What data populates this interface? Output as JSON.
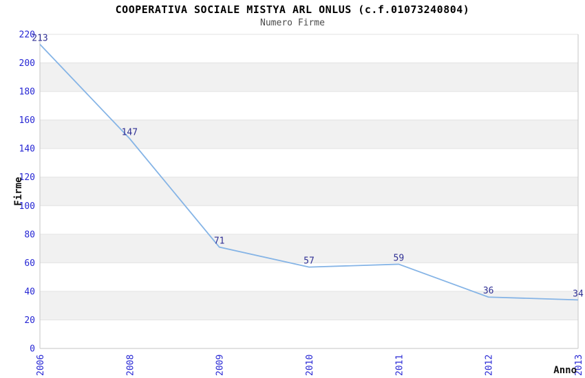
{
  "header": {
    "title": "COOPERATIVA SOCIALE MISTYA ARL ONLUS (c.f.01073240804)",
    "subtitle": "Numero Firme"
  },
  "chart_data": {
    "type": "line",
    "title": "COOPERATIVA SOCIALE MISTYA ARL ONLUS (c.f.01073240804)",
    "subtitle": "Numero Firme",
    "categories": [
      "2006",
      "2008",
      "2009",
      "2010",
      "2011",
      "2012",
      "2013"
    ],
    "values": [
      213,
      147,
      71,
      57,
      59,
      36,
      34
    ],
    "xlabel": "Anno",
    "ylabel": "Firme",
    "ylim": [
      0,
      220
    ],
    "ytick_step": 20,
    "yticks": [
      0,
      20,
      40,
      60,
      80,
      100,
      120,
      140,
      160,
      180,
      200,
      220
    ],
    "grid": "horizontal",
    "plot_bands_alternating": true,
    "legend": "none",
    "point_labels_visible": true,
    "colors": {
      "line": "#85b4e6",
      "point_label": "#2f2f94",
      "tick_label": "#2626d4",
      "band_fill": "#f1f1f1",
      "band_fill_alt": "#ffffff",
      "grid_line": "#e2e2e2",
      "axis_line": "#c6c6c6",
      "title": "#000000",
      "subtitle": "#4a4a4a",
      "axis_title": "#111111",
      "background": "#ffffff"
    }
  }
}
